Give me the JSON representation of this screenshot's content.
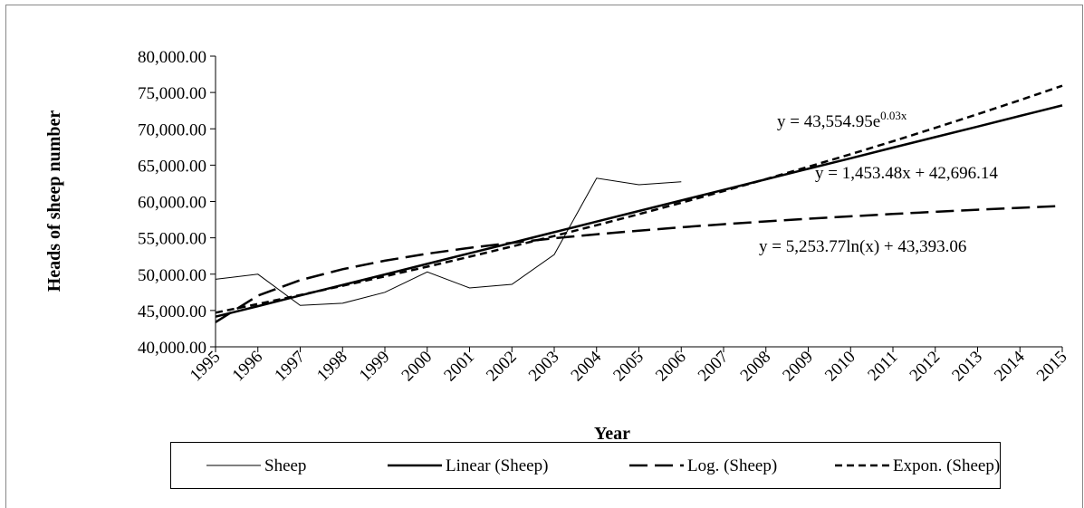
{
  "chart_data": {
    "type": "line",
    "x_label": "Year",
    "y_label": "Heads of sheep number",
    "categories": [
      "1995",
      "1996",
      "1997",
      "1998",
      "1999",
      "2000",
      "2001",
      "2002",
      "2003",
      "2004",
      "2005",
      "2006",
      "2007",
      "2008",
      "2009",
      "2010",
      "2011",
      "2012",
      "2013",
      "2014",
      "2015"
    ],
    "series": [
      {
        "name": "Sheep",
        "color": "#000000",
        "line_style": "thin",
        "values": [
          49300,
          50000,
          45700,
          46000,
          47500,
          50300,
          48100,
          48600,
          52700,
          63200,
          62300,
          62700,
          null,
          null,
          null,
          null,
          null,
          null,
          null,
          null,
          null
        ]
      },
      {
        "name": "Linear (Sheep)",
        "color": "#000000",
        "line_style": "solid",
        "values": [
          44150,
          45600,
          47060,
          48510,
          49960,
          51420,
          52870,
          54320,
          55780,
          57230,
          58690,
          60140,
          61590,
          63050,
          64500,
          65950,
          67410,
          68860,
          70310,
          71770,
          73220
        ]
      },
      {
        "name": "Log. (Sheep)",
        "color": "#000000",
        "line_style": "long-dash",
        "values": [
          43390,
          47040,
          49170,
          50680,
          51850,
          52810,
          53620,
          54320,
          54940,
          55490,
          55990,
          56450,
          56870,
          57260,
          57620,
          57960,
          58280,
          58580,
          58860,
          59130,
          59390
        ]
      },
      {
        "name": "Expon. (Sheep)",
        "color": "#000000",
        "line_style": "short-dash",
        "values": [
          44700,
          45900,
          47130,
          48400,
          49700,
          51030,
          52400,
          53810,
          55250,
          56730,
          58260,
          59820,
          61430,
          63080,
          64770,
          66510,
          68290,
          70130,
          72010,
          73940,
          75930
        ]
      }
    ],
    "annotations": [
      {
        "text": "y = 43,554.95e",
        "superscript": "0.03x"
      },
      {
        "text": "y = 1,453.48x + 42,696.14"
      },
      {
        "text": "y = 5,253.77ln(x) + 43,393.06"
      }
    ],
    "ylim": [
      40000,
      80000
    ],
    "yticks": [
      {
        "value": 40000,
        "label": "40,000.00"
      },
      {
        "value": 45000,
        "label": "45,000.00"
      },
      {
        "value": 50000,
        "label": "50,000.00"
      },
      {
        "value": 55000,
        "label": "55,000.00"
      },
      {
        "value": 60000,
        "label": "60,000.00"
      },
      {
        "value": 65000,
        "label": "65,000.00"
      },
      {
        "value": 70000,
        "label": "70,000.00"
      },
      {
        "value": 75000,
        "label": "75,000.00"
      },
      {
        "value": 80000,
        "label": "80,000.00"
      }
    ],
    "grid": false,
    "legend": "bottom"
  }
}
